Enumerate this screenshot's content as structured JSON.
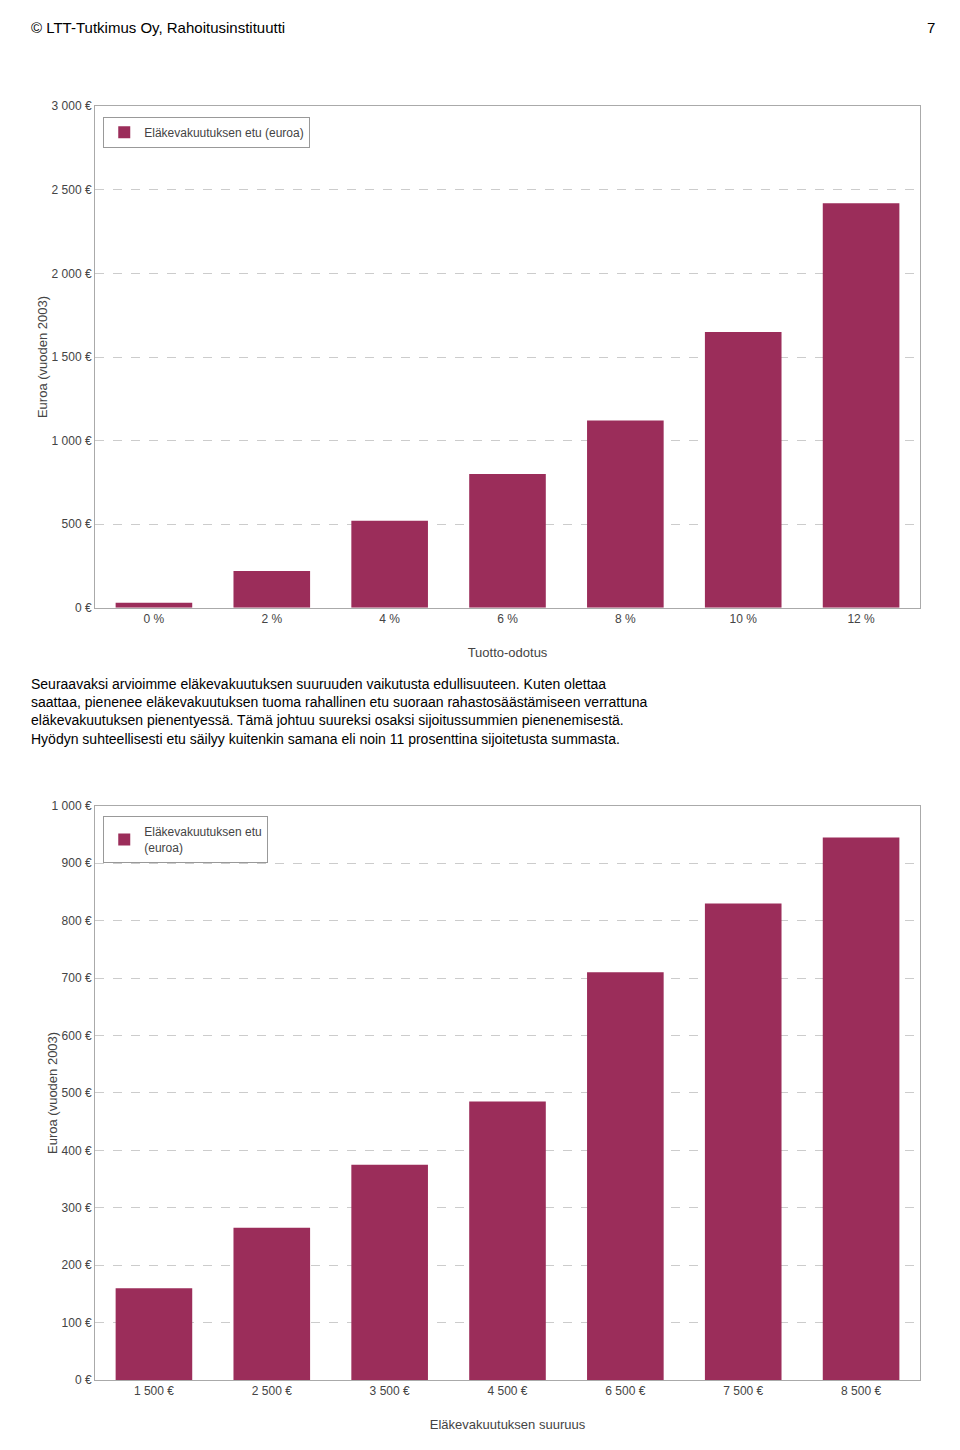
{
  "header_text": "© LTT-Tutkimus Oy, Rahoitusinstituutti",
  "page_number": "7",
  "paragraph_lines": [
    "Seuraavaksi arvioimme eläkevakuutuksen suuruuden vaikutusta edullisuuteen. Kuten olettaa",
    "saattaa, pienenee eläkevakuutuksen tuoma rahallinen etu suoraan rahastosäästämiseen verrattuna",
    "eläkevakuutuksen pienentyessä. Tämä johtuu suureksi osaksi sijoitussummien pienenemisestä.",
    "Hyödyn suhteellisesti etu säilyy kuitenkin samana eli noin 11 prosenttina sijoitetusta summasta."
  ],
  "chart_data": [
    {
      "type": "bar",
      "categories": [
        "0 %",
        "2 %",
        "4 %",
        "6 %",
        "8 %",
        "10 %",
        "12 %"
      ],
      "series": [
        {
          "name": "Eläkevakuutuksen etu (euroa)",
          "color": "#9B2D5A",
          "values": [
            30,
            220,
            520,
            800,
            1120,
            1650,
            2420
          ]
        }
      ],
      "xlabel": "Tuotto-odotus",
      "ylabel": "Euroa (vuoden 2003)",
      "ylim": [
        0,
        3000
      ],
      "yticks": [
        {
          "value": 0,
          "label": "0 €"
        },
        {
          "value": 500,
          "label": "500 €"
        },
        {
          "value": 1000,
          "label": "1 000 €"
        },
        {
          "value": 1500,
          "label": "1 500 €"
        },
        {
          "value": 2000,
          "label": "2 000 €"
        },
        {
          "value": 2500,
          "label": "2 500 €"
        },
        {
          "value": 3000,
          "label": "3 000 €"
        }
      ],
      "grid": true,
      "legend": "upper left"
    },
    {
      "type": "bar",
      "categories": [
        "1 500 €",
        "2 500 €",
        "3 500 €",
        "4 500 €",
        "6 500 €",
        "7 500 €",
        "8 500 €"
      ],
      "series": [
        {
          "name": "Eläkevakuutuksen etu\n(euroa)",
          "color": "#9B2D5A",
          "values": [
            160,
            265,
            375,
            485,
            710,
            830,
            945
          ]
        }
      ],
      "xlabel": "Eläkevakuutuksen suuruus",
      "ylabel": "Euroa (vuoden 2003)",
      "ylim": [
        0,
        1000
      ],
      "yticks": [
        {
          "value": 0,
          "label": "0 €"
        },
        {
          "value": 100,
          "label": "100 €"
        },
        {
          "value": 200,
          "label": "200 €"
        },
        {
          "value": 300,
          "label": "300 €"
        },
        {
          "value": 400,
          "label": "400 €"
        },
        {
          "value": 500,
          "label": "500 €"
        },
        {
          "value": 600,
          "label": "600 €"
        },
        {
          "value": 700,
          "label": "700 €"
        },
        {
          "value": 800,
          "label": "800 €"
        },
        {
          "value": 900,
          "label": "900 €"
        },
        {
          "value": 1000,
          "label": "1 000 €"
        }
      ],
      "grid": true,
      "legend": "upper left"
    }
  ]
}
